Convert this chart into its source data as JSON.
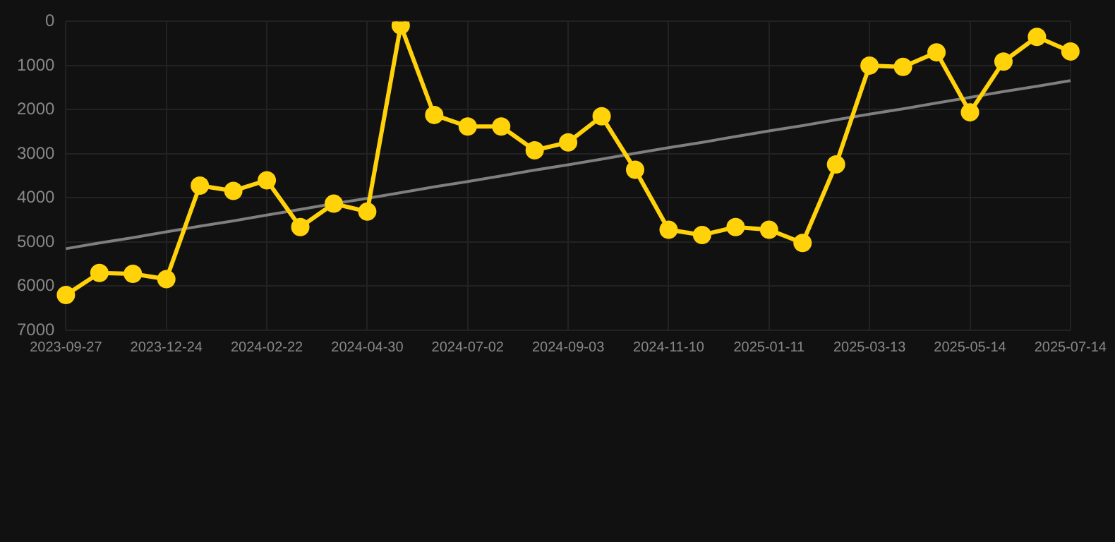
{
  "chart_data": {
    "type": "line",
    "categories": [
      "2023-09-27",
      null,
      null,
      "2023-12-24",
      null,
      null,
      "2024-02-22",
      null,
      null,
      "2024-04-30",
      null,
      null,
      "2024-07-02",
      null,
      null,
      "2024-09-03",
      null,
      null,
      "2024-11-10",
      null,
      null,
      "2025-01-11",
      null,
      null,
      "2025-03-13",
      null,
      null,
      "2025-05-14",
      null,
      null,
      "2025-07-14"
    ],
    "series": [
      {
        "color": "#ffd20a",
        "marker": "circle",
        "values": [
          6200,
          5700,
          5720,
          5840,
          3720,
          3840,
          3600,
          4660,
          4130,
          4310,
          90,
          2120,
          2380,
          2380,
          2920,
          2740,
          2150,
          3360,
          4720,
          4840,
          4660,
          4720,
          5020,
          3240,
          1000,
          1030,
          700,
          2060,
          910,
          350,
          680
        ]
      },
      {
        "color": "#7f7f7f",
        "marker": "none",
        "values": [
          5150,
          5020,
          4900,
          4770,
          4640,
          4520,
          4390,
          4260,
          4130,
          4010,
          3880,
          3750,
          3630,
          3500,
          3370,
          3250,
          3120,
          2990,
          2860,
          2740,
          2610,
          2480,
          2360,
          2230,
          2100,
          1980,
          1850,
          1720,
          1590,
          1470,
          1340
        ]
      }
    ],
    "ylim": [
      7000,
      0
    ],
    "yticks": [
      0,
      1000,
      2000,
      3000,
      4000,
      5000,
      6000,
      7000
    ],
    "grid": true,
    "legend": false
  }
}
